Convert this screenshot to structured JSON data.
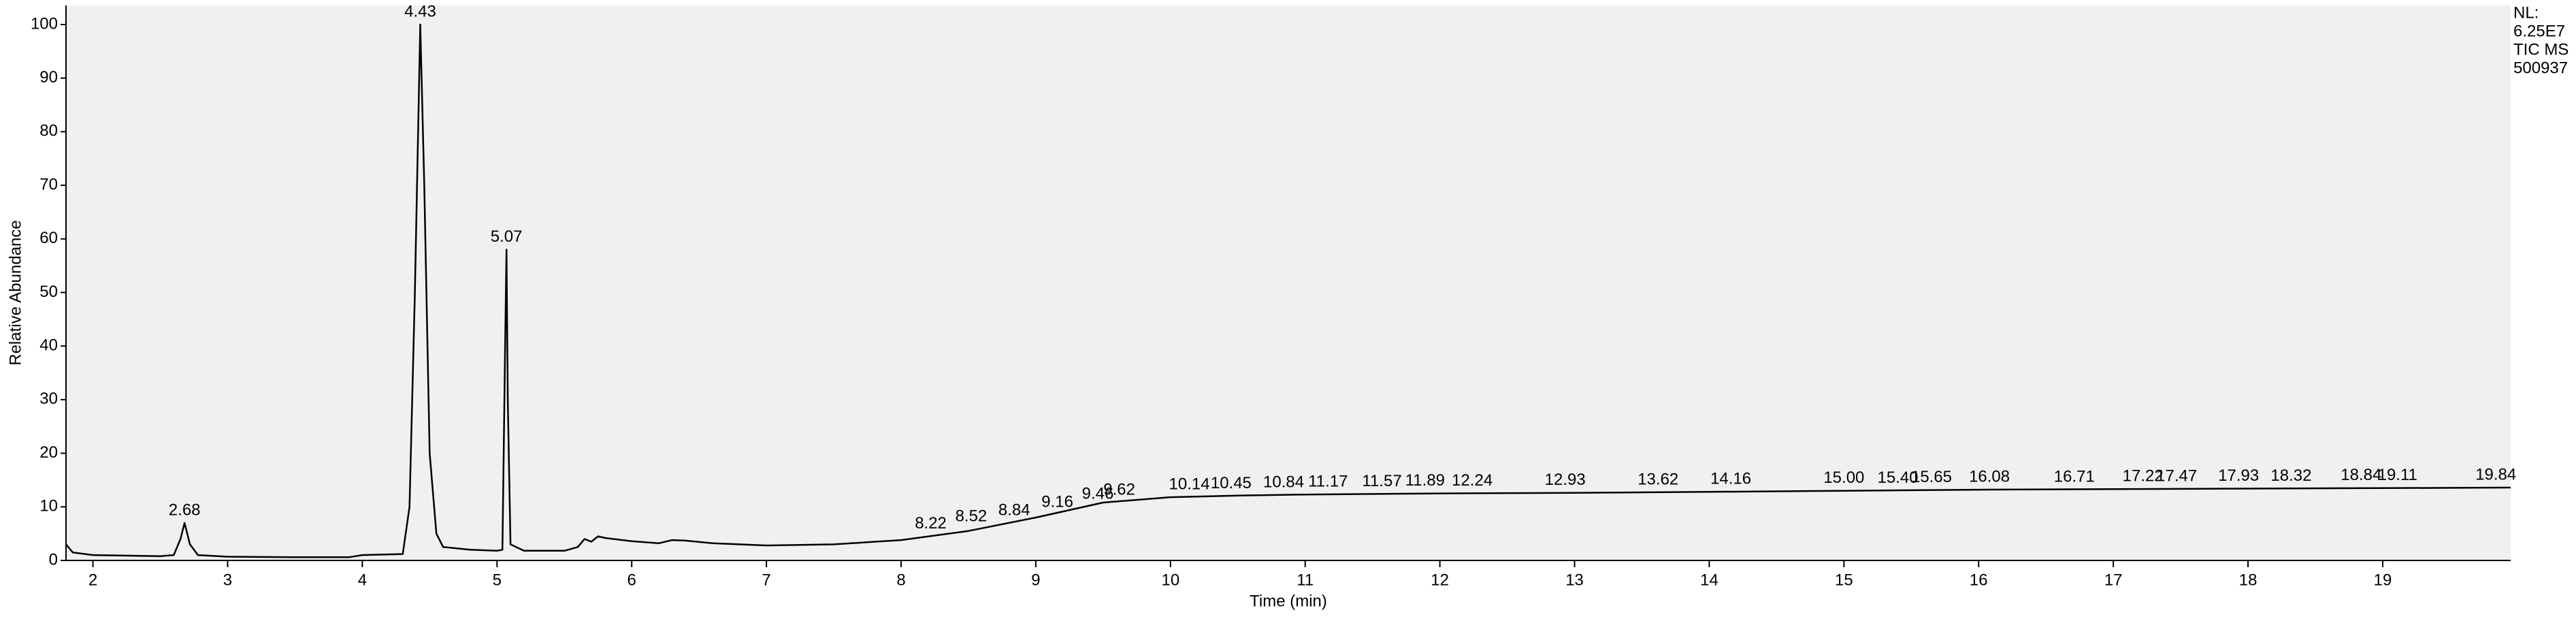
{
  "chart_data": {
    "type": "line",
    "xlabel": "Time (min)",
    "ylabel": "Relative Abundance",
    "info": [
      "NL:",
      "6.25E7",
      "TIC  MS",
      "500937"
    ],
    "xlim": [
      1.8,
      19.95
    ],
    "ylim": [
      0,
      100
    ],
    "xticks": [
      2,
      3,
      4,
      5,
      6,
      7,
      8,
      9,
      10,
      11,
      12,
      13,
      14,
      15,
      16,
      17,
      18,
      19
    ],
    "yticks": [
      0,
      10,
      20,
      30,
      40,
      50,
      60,
      70,
      80,
      90,
      100
    ],
    "series": [
      {
        "color": "#000000",
        "x": [
          1.8,
          1.85,
          2.0,
          2.5,
          2.6,
          2.65,
          2.68,
          2.72,
          2.78,
          3.0,
          3.5,
          3.9,
          4.0,
          4.3,
          4.35,
          4.39,
          4.43,
          4.46,
          4.5,
          4.55,
          4.6,
          4.8,
          5.0,
          5.04,
          5.06,
          5.07,
          5.08,
          5.1,
          5.2,
          5.5,
          5.6,
          5.65,
          5.7,
          5.75,
          5.8,
          6.0,
          6.2,
          6.3,
          6.4,
          6.6,
          7.0,
          7.5,
          8.0,
          8.5,
          9.0,
          9.5,
          10.0,
          10.5,
          11.0,
          12.0,
          13.0,
          14.0,
          15.0,
          16.0,
          17.0,
          18.0,
          19.0,
          19.95
        ],
        "values": [
          3,
          1.5,
          1.0,
          0.8,
          1,
          4,
          7,
          3,
          1,
          0.7,
          0.6,
          0.6,
          1.0,
          1.2,
          10,
          50,
          100,
          70,
          20,
          5,
          2.5,
          2,
          1.8,
          2,
          40,
          58,
          30,
          3,
          1.8,
          1.8,
          2.5,
          4,
          3.5,
          4.5,
          4.2,
          3.6,
          3.2,
          3.8,
          3.7,
          3.2,
          2.8,
          3,
          3.8,
          5.5,
          8,
          10.8,
          11.8,
          12.1,
          12.3,
          12.5,
          12.6,
          12.8,
          13,
          13.2,
          13.3,
          13.4,
          13.5,
          13.6
        ]
      }
    ],
    "peak_labels": {
      "x": [
        2.68,
        4.43,
        5.07,
        8.22,
        8.52,
        8.84,
        9.16,
        9.46,
        9.62,
        10.14,
        10.45,
        10.84,
        11.17,
        11.57,
        11.89,
        12.24,
        12.93,
        13.62,
        14.16,
        15.0,
        15.4,
        15.65,
        16.08,
        16.71,
        17.22,
        17.47,
        17.93,
        18.32,
        18.84,
        19.11,
        19.84
      ],
      "y": [
        7,
        100,
        58,
        4.5,
        5.8,
        7,
        8.5,
        10,
        10.8,
        11.8,
        12,
        12.2,
        12.3,
        12.4,
        12.5,
        12.5,
        12.6,
        12.7,
        12.8,
        13,
        13,
        13.1,
        13.2,
        13.2,
        13.3,
        13.3,
        13.4,
        13.4,
        13.5,
        13.5,
        13.6
      ],
      "labels": [
        "2.68",
        "4.43",
        "5.07",
        "8.22",
        "8.52",
        "8.84",
        "9.16",
        "9.46",
        "9.62",
        "10.14",
        "10.45",
        "10.84",
        "11.17",
        "11.57",
        "11.89",
        "12.24",
        "12.93",
        "13.62",
        "14.16",
        "15.00",
        "15.40",
        "15.65",
        "16.08",
        "16.71",
        "17.22",
        "17.47",
        "17.93",
        "18.32",
        "18.84",
        "19.11",
        "19.84"
      ]
    }
  }
}
